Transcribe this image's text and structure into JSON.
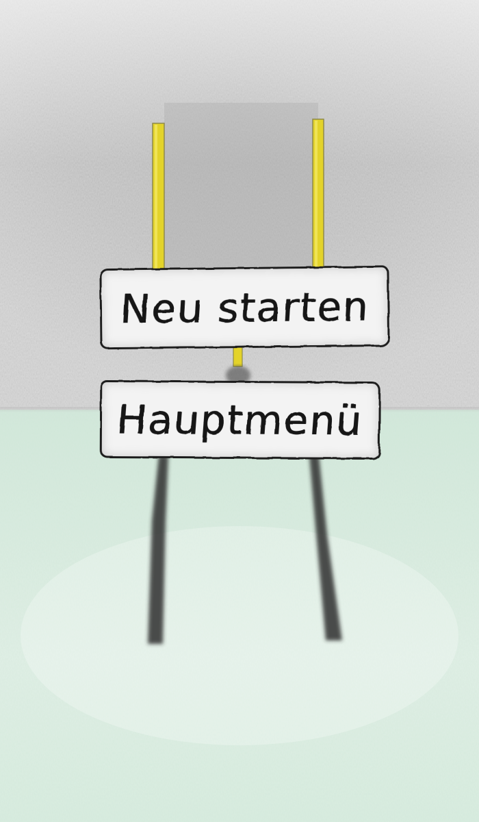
{
  "menu": {
    "restart_label": "Neu starten",
    "main_menu_label": "Hauptmenü"
  },
  "colors": {
    "sky": "#c9c9c9",
    "ground": "#d7ebdf",
    "post": "#e6d62a",
    "shadow": "#3a3a3a",
    "sign_fill": "#f3f3f3",
    "ink": "#151515"
  }
}
